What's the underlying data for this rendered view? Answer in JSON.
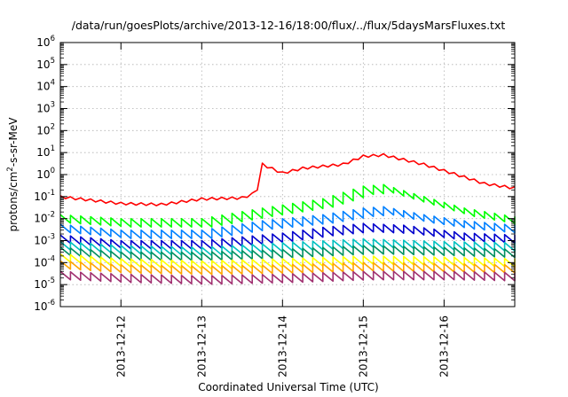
{
  "chart_data": {
    "type": "line",
    "title": "/data/run/goesPlots/archive/2013-12-16/18:00/flux/../flux/5daysMarsFluxes.txt",
    "xlabel": "Coordinated Universal Time (UTC)",
    "ylabel_parts": [
      "protons/cm",
      "2",
      "-s-sr-MeV"
    ],
    "yscale": "log",
    "ylim": [
      1e-06,
      1000000.0
    ],
    "xlim": [
      "2013-12-11 06:00",
      "2013-12-16 21:00"
    ],
    "grid": true,
    "legend": "none",
    "x_tick_labels": [
      "2013-12-12",
      "2013-12-13",
      "2013-12-14",
      "2013-12-15",
      "2013-12-16"
    ],
    "y_tick_labels": [
      {
        "base": "10",
        "exp": "-6"
      },
      {
        "base": "10",
        "exp": "-5"
      },
      {
        "base": "10",
        "exp": "-4"
      },
      {
        "base": "10",
        "exp": "-3"
      },
      {
        "base": "10",
        "exp": "-2"
      },
      {
        "base": "10",
        "exp": "-1"
      },
      {
        "base": "10",
        "exp": "0"
      },
      {
        "base": "10",
        "exp": "1"
      },
      {
        "base": "10",
        "exp": "2"
      },
      {
        "base": "10",
        "exp": "3"
      },
      {
        "base": "10",
        "exp": "4"
      },
      {
        "base": "10",
        "exp": "5"
      },
      {
        "base": "10",
        "exp": "6"
      }
    ],
    "sawtooth_period_hours": 3,
    "series": [
      {
        "color": "#ff0000",
        "sawtooth": false,
        "points": [
          [
            "2013-12-11 06:00",
            0.1
          ],
          [
            "2013-12-11 12:00",
            0.08
          ],
          [
            "2013-12-12 00:00",
            0.05
          ],
          [
            "2013-12-12 12:00",
            0.045
          ],
          [
            "2013-12-13 00:00",
            0.08
          ],
          [
            "2013-12-13 12:00",
            0.09
          ],
          [
            "2013-12-13 16:00",
            0.15
          ],
          [
            "2013-12-13 17:00",
            0.35
          ],
          [
            "2013-12-13 18:00",
            3
          ],
          [
            "2013-12-14 00:00",
            1.2
          ],
          [
            "2013-12-14 06:00",
            2
          ],
          [
            "2013-12-14 18:00",
            3
          ],
          [
            "2013-12-15 00:00",
            7
          ],
          [
            "2013-12-15 06:00",
            8
          ],
          [
            "2013-12-15 18:00",
            3
          ],
          [
            "2013-12-16 06:00",
            0.8
          ],
          [
            "2013-12-16 12:00",
            0.4
          ],
          [
            "2013-12-16 21:00",
            0.25
          ]
        ]
      },
      {
        "color": "#00ff00",
        "sawtooth": true,
        "points": [
          [
            "2013-12-11 06:00",
            0.015
          ],
          [
            "2013-12-12 00:00",
            0.01
          ],
          [
            "2013-12-13 00:00",
            0.01
          ],
          [
            "2013-12-13 18:00",
            0.03
          ],
          [
            "2013-12-14 12:00",
            0.08
          ],
          [
            "2013-12-15 00:00",
            0.3
          ],
          [
            "2013-12-15 06:00",
            0.35
          ],
          [
            "2013-12-15 18:00",
            0.1
          ],
          [
            "2013-12-16 06:00",
            0.03
          ],
          [
            "2013-12-16 21:00",
            0.012
          ]
        ]
      },
      {
        "color": "#0080ff",
        "sawtooth": true,
        "points": [
          [
            "2013-12-11 06:00",
            0.0055
          ],
          [
            "2013-12-12 00:00",
            0.003
          ],
          [
            "2013-12-13 00:00",
            0.003
          ],
          [
            "2013-12-13 18:00",
            0.008
          ],
          [
            "2013-12-14 12:00",
            0.015
          ],
          [
            "2013-12-15 00:00",
            0.03
          ],
          [
            "2013-12-15 06:00",
            0.035
          ],
          [
            "2013-12-15 18:00",
            0.015
          ],
          [
            "2013-12-16 06:00",
            0.008
          ],
          [
            "2013-12-16 21:00",
            0.005
          ]
        ]
      },
      {
        "color": "#0000cc",
        "sawtooth": true,
        "points": [
          [
            "2013-12-11 06:00",
            0.0018
          ],
          [
            "2013-12-12 00:00",
            0.001
          ],
          [
            "2013-12-13 00:00",
            0.001
          ],
          [
            "2013-12-14 00:00",
            0.0022
          ],
          [
            "2013-12-14 12:00",
            0.004
          ],
          [
            "2013-12-15 00:00",
            0.006
          ],
          [
            "2013-12-15 12:00",
            0.005
          ],
          [
            "2013-12-16 06:00",
            0.0022
          ],
          [
            "2013-12-16 21:00",
            0.0018
          ]
        ]
      },
      {
        "color": "#00c0c0",
        "sawtooth": true,
        "points": [
          [
            "2013-12-11 06:00",
            0.0009
          ],
          [
            "2013-12-12 00:00",
            0.0006
          ],
          [
            "2013-12-13 00:00",
            0.0005
          ],
          [
            "2013-12-14 00:00",
            0.0008
          ],
          [
            "2013-12-15 00:00",
            0.0012
          ],
          [
            "2013-12-16 00:00",
            0.0009
          ],
          [
            "2013-12-16 21:00",
            0.0008
          ]
        ]
      },
      {
        "color": "#009060",
        "sawtooth": true,
        "points": [
          [
            "2013-12-11 06:00",
            0.0005
          ],
          [
            "2013-12-12 00:00",
            0.0003
          ],
          [
            "2013-12-13 00:00",
            0.0003
          ],
          [
            "2013-12-14 00:00",
            0.0004
          ],
          [
            "2013-12-15 00:00",
            0.0006
          ],
          [
            "2013-12-16 00:00",
            0.0005
          ],
          [
            "2013-12-16 21:00",
            0.0004
          ]
        ]
      },
      {
        "color": "#ffff00",
        "sawtooth": true,
        "points": [
          [
            "2013-12-11 06:00",
            0.00025
          ],
          [
            "2013-12-12 00:00",
            0.00015
          ],
          [
            "2013-12-13 00:00",
            0.00012
          ],
          [
            "2013-12-14 00:00",
            0.00015
          ],
          [
            "2013-12-15 00:00",
            0.0002
          ],
          [
            "2013-12-16 00:00",
            0.00018
          ],
          [
            "2013-12-16 21:00",
            0.00015
          ]
        ]
      },
      {
        "color": "#ffa500",
        "sawtooth": true,
        "points": [
          [
            "2013-12-11 06:00",
            0.00012
          ],
          [
            "2013-12-12 00:00",
            8e-05
          ],
          [
            "2013-12-13 00:00",
            7e-05
          ],
          [
            "2013-12-14 00:00",
            8e-05
          ],
          [
            "2013-12-15 00:00",
            0.0001
          ],
          [
            "2013-12-16 00:00",
            9e-05
          ],
          [
            "2013-12-16 21:00",
            8e-05
          ]
        ]
      },
      {
        "color": "#a03070",
        "sawtooth": true,
        "points": [
          [
            "2013-12-11 06:00",
            4e-05
          ],
          [
            "2013-12-12 00:00",
            3e-05
          ],
          [
            "2013-12-13 00:00",
            2.5e-05
          ],
          [
            "2013-12-14 00:00",
            3e-05
          ],
          [
            "2013-12-15 00:00",
            4e-05
          ],
          [
            "2013-12-16 00:00",
            4e-05
          ],
          [
            "2013-12-16 21:00",
            3.5e-05
          ]
        ]
      }
    ]
  }
}
